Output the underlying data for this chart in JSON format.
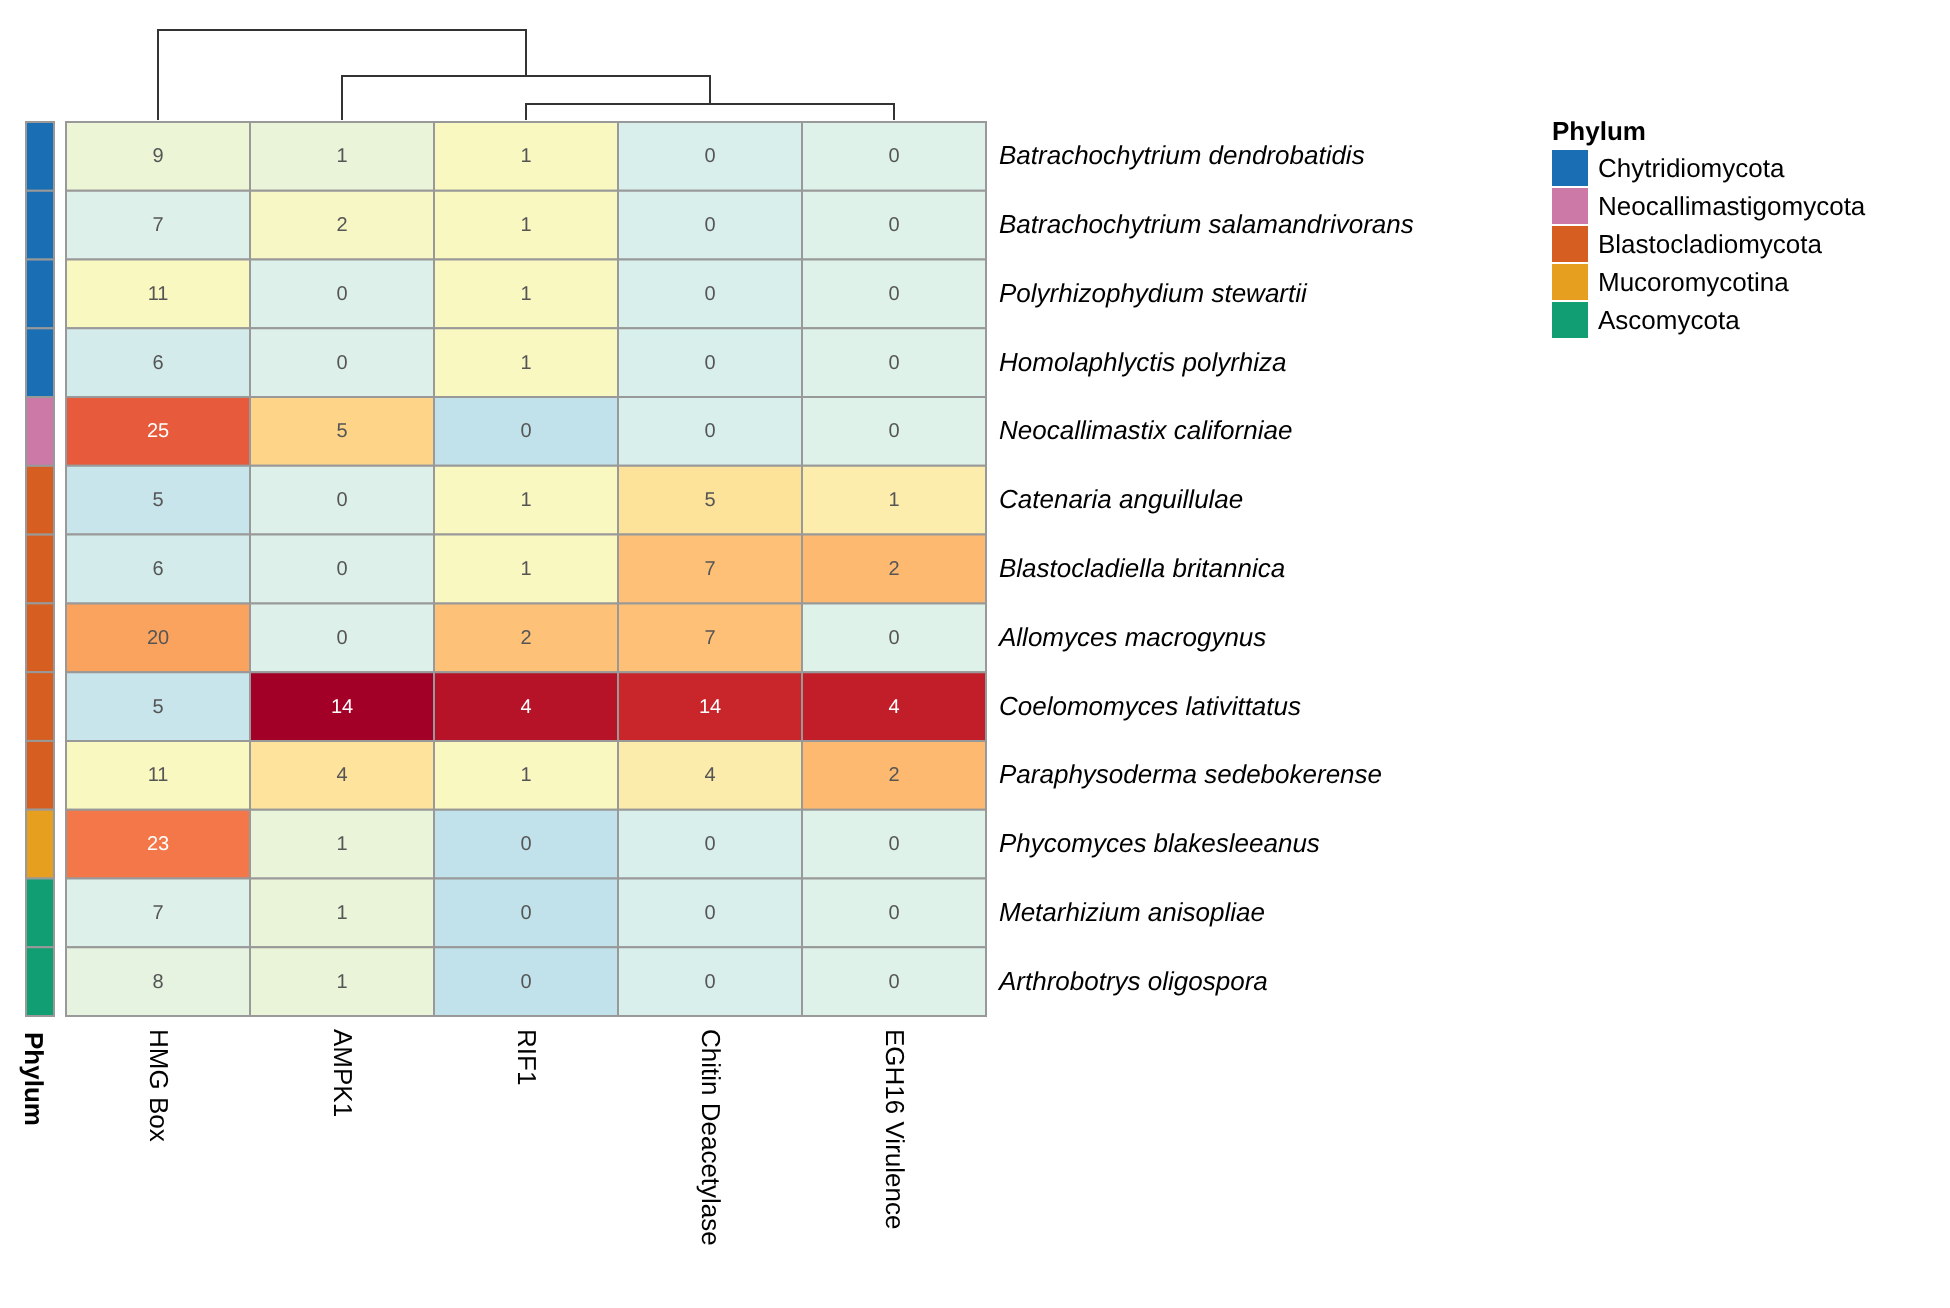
{
  "chart_data": [
    {
      "type": "heatmap",
      "categories": [
        "HMG Box",
        "AMPK1",
        "RIF1",
        "Chitin Deacetylase",
        "EGH16 Virulence"
      ],
      "y_categories": [
        "Batrachochytrium dendrobatidis",
        "Batrachochytrium salamandrivorans",
        "Polyrhizophydium stewartii",
        "Homolaphlyctis polyrhiza",
        "Neocallimastix californiae",
        "Catenaria anguillulae",
        "Blastocladiella britannica",
        "Allomyces macrogynus",
        "Coelomomyces lativittatus",
        "Paraphysoderma sedebokerense",
        "Phycomyces blakesleeanus",
        "Metarhizium anisopliae",
        "Arthrobotrys oligospora"
      ],
      "cells": [
        [
          9,
          1,
          1,
          0,
          0
        ],
        [
          7,
          2,
          1,
          0,
          0
        ],
        [
          11,
          0,
          1,
          0,
          0
        ],
        [
          6,
          0,
          1,
          0,
          0
        ],
        [
          25,
          5,
          0,
          0,
          0
        ],
        [
          5,
          0,
          1,
          5,
          1
        ],
        [
          6,
          0,
          1,
          7,
          2
        ],
        [
          20,
          0,
          2,
          7,
          0
        ],
        [
          5,
          14,
          4,
          14,
          4
        ],
        [
          11,
          4,
          1,
          4,
          2
        ],
        [
          23,
          1,
          0,
          0,
          0
        ],
        [
          7,
          1,
          0,
          0,
          0
        ],
        [
          8,
          1,
          0,
          0,
          0
        ]
      ],
      "data_labels": true
    },
    {
      "type": "other",
      "xlabel": "Phylum",
      "legend_title": "Phylum",
      "legend": "top right",
      "colors": [
        "#1a6fb4",
        "#1a6fb4",
        "#1a6fb4",
        "#1a6fb4",
        "#cc79a7",
        "#d55e20",
        "#d55e20",
        "#d55e20",
        "#d55e20",
        "#d55e20",
        "#e69f1e",
        "#129e73",
        "#129e73"
      ],
      "series": [
        {
          "name": "Chytridiomycota",
          "color": "#1a6fb4"
        },
        {
          "name": "Neocallimastigomycota",
          "color": "#cc79a7"
        },
        {
          "name": "Blastocladiomycota",
          "color": "#d55e20"
        },
        {
          "name": "Mucoromycotina",
          "color": "#e69f1e"
        },
        {
          "name": "Ascomycota",
          "color": "#129e73"
        }
      ]
    }
  ]
}
